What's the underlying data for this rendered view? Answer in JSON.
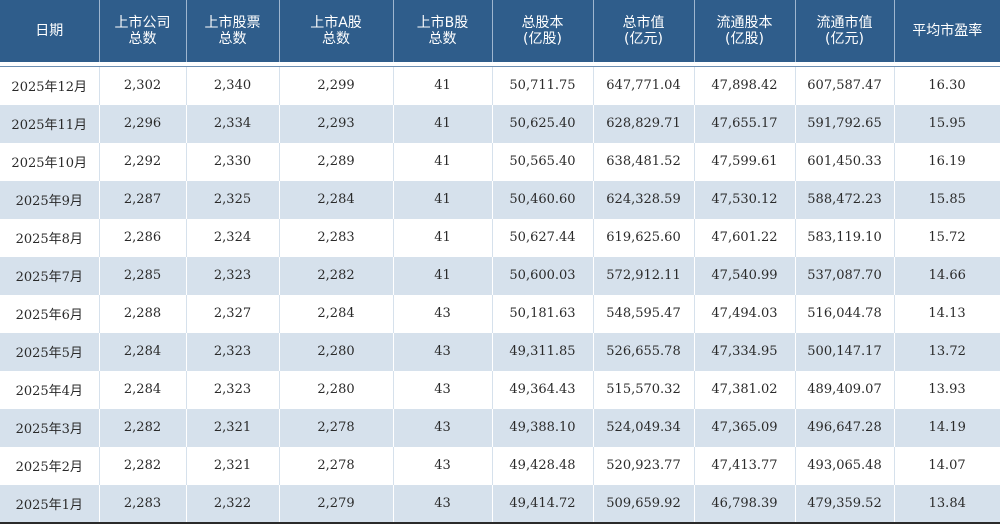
{
  "table": {
    "headers": [
      "日期",
      "上市公司\n总数",
      "上市股票\n总数",
      "上市A股\n总数",
      "上市B股\n总数",
      "总股本\n(亿股)",
      "总市值\n(亿元)",
      "流通股本\n(亿股)",
      "流通市值\n(亿元)",
      "平均市盈率"
    ],
    "rows": [
      [
        "2025年12月",
        "2,302",
        "2,340",
        "2,299",
        "41",
        "50,711.75",
        "647,771.04",
        "47,898.42",
        "607,587.47",
        "16.30"
      ],
      [
        "2025年11月",
        "2,296",
        "2,334",
        "2,293",
        "41",
        "50,625.40",
        "628,829.71",
        "47,655.17",
        "591,792.65",
        "15.95"
      ],
      [
        "2025年10月",
        "2,292",
        "2,330",
        "2,289",
        "41",
        "50,565.40",
        "638,481.52",
        "47,599.61",
        "601,450.33",
        "16.19"
      ],
      [
        "2025年9月",
        "2,287",
        "2,325",
        "2,284",
        "41",
        "50,460.60",
        "624,328.59",
        "47,530.12",
        "588,472.23",
        "15.85"
      ],
      [
        "2025年8月",
        "2,286",
        "2,324",
        "2,283",
        "41",
        "50,627.44",
        "619,625.60",
        "47,601.22",
        "583,119.10",
        "15.72"
      ],
      [
        "2025年7月",
        "2,285",
        "2,323",
        "2,282",
        "41",
        "50,600.03",
        "572,912.11",
        "47,540.99",
        "537,087.70",
        "14.66"
      ],
      [
        "2025年6月",
        "2,288",
        "2,327",
        "2,284",
        "43",
        "50,181.63",
        "548,595.47",
        "47,494.03",
        "516,044.78",
        "14.13"
      ],
      [
        "2025年5月",
        "2,284",
        "2,323",
        "2,280",
        "43",
        "49,311.85",
        "526,655.78",
        "47,334.95",
        "500,147.17",
        "13.72"
      ],
      [
        "2025年4月",
        "2,284",
        "2,323",
        "2,280",
        "43",
        "49,364.43",
        "515,570.32",
        "47,381.02",
        "489,409.07",
        "13.93"
      ],
      [
        "2025年3月",
        "2,282",
        "2,321",
        "2,278",
        "43",
        "49,388.10",
        "524,049.34",
        "47,365.09",
        "496,647.28",
        "14.19"
      ],
      [
        "2025年2月",
        "2,282",
        "2,321",
        "2,278",
        "43",
        "49,428.48",
        "520,923.77",
        "47,413.77",
        "493,065.48",
        "14.07"
      ],
      [
        "2025年1月",
        "2,283",
        "2,322",
        "2,279",
        "43",
        "49,414.72",
        "509,659.92",
        "46,798.39",
        "479,359.52",
        "13.84"
      ]
    ]
  },
  "colors": {
    "header_bg": "#2f5d8b",
    "header_text": "#ffffff",
    "stripe_bg": "#d6e1ec"
  }
}
